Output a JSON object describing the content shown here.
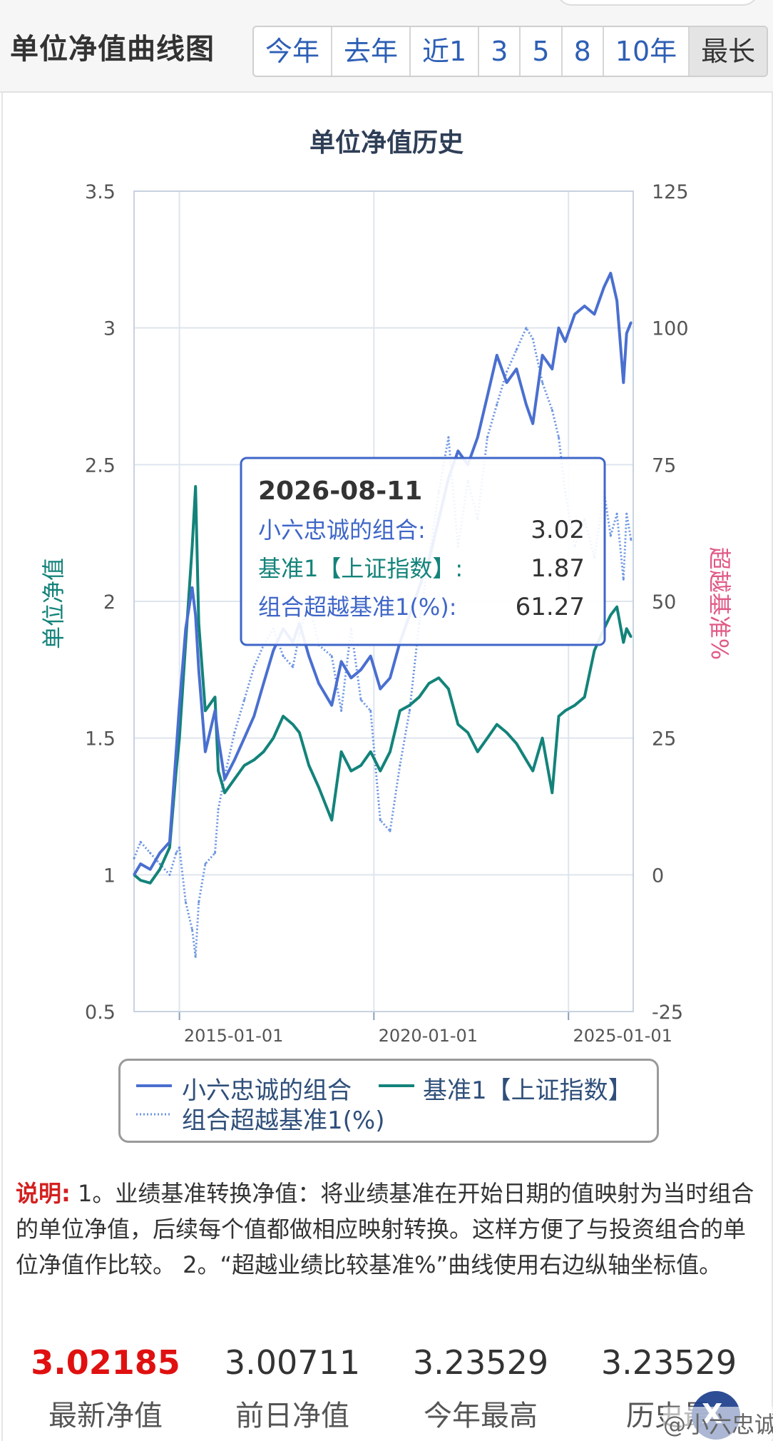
{
  "header": {
    "title": "单位净值曲线图",
    "tabs": [
      {
        "label": "今年",
        "active": false
      },
      {
        "label": "去年",
        "active": false
      },
      {
        "label": "近1",
        "active": false
      },
      {
        "label": "3",
        "active": false
      },
      {
        "label": "5",
        "active": false
      },
      {
        "label": "8",
        "active": false
      },
      {
        "label": "10年",
        "active": false
      },
      {
        "label": "最长",
        "active": true
      }
    ]
  },
  "tooltip": {
    "date": "2026-08-11",
    "rows": [
      {
        "label": "小六忠诚的组合:",
        "value": "3.02",
        "color": "#3f66c8"
      },
      {
        "label": "基准1【上证指数】:",
        "value": "1.87",
        "color": "#13837a"
      },
      {
        "label": "组合超越基准1(%):",
        "value": "61.27",
        "color": "#3f66c8"
      }
    ]
  },
  "legend": {
    "items": [
      {
        "label": "小六忠诚的组合",
        "color": "#4a6fd0",
        "style": "solid"
      },
      {
        "label": "基准1【上证指数】",
        "color": "#13837a",
        "style": "solid"
      },
      {
        "label": "组合超越基准1(%)",
        "color": "#6a94e0",
        "style": "dotted"
      }
    ]
  },
  "chart_data": {
    "type": "line",
    "title": "单位净值历史",
    "ylabel": "单位净值",
    "y2label": "超越基准%",
    "ylim": [
      0.5,
      3.5
    ],
    "y2lim": [
      -25,
      125
    ],
    "yticks": [
      "3.5",
      "3",
      "2.5",
      "2",
      "1.5",
      "1",
      "0.5"
    ],
    "y2ticks": [
      "125",
      "100",
      "75",
      "50",
      "25",
      "0",
      "-25"
    ],
    "xlim": [
      "2013-11-01",
      "2026-09-01"
    ],
    "xticks": [
      "2015-01-01",
      "2020-01-01",
      "2025-01-01"
    ],
    "grid": true,
    "colors": {
      "portfolio": "#4a6fd0",
      "benchmark": "#13837a",
      "excess": "#6a94e0"
    },
    "series": [
      {
        "name": "小六忠诚的组合",
        "axis": "left",
        "points": [
          [
            "2013-11-01",
            1.0
          ],
          [
            "2014-01-01",
            1.04
          ],
          [
            "2014-04-01",
            1.02
          ],
          [
            "2014-07-01",
            1.08
          ],
          [
            "2014-10-01",
            1.12
          ],
          [
            "2014-12-01",
            1.45
          ],
          [
            "2015-01-01",
            1.62
          ],
          [
            "2015-03-01",
            1.9
          ],
          [
            "2015-05-01",
            2.05
          ],
          [
            "2015-06-01",
            1.95
          ],
          [
            "2015-07-01",
            1.75
          ],
          [
            "2015-09-01",
            1.45
          ],
          [
            "2015-12-01",
            1.6
          ],
          [
            "2016-01-01",
            1.5
          ],
          [
            "2016-03-01",
            1.35
          ],
          [
            "2016-06-01",
            1.42
          ],
          [
            "2016-09-01",
            1.5
          ],
          [
            "2016-12-01",
            1.58
          ],
          [
            "2017-03-01",
            1.7
          ],
          [
            "2017-06-01",
            1.82
          ],
          [
            "2017-09-01",
            1.9
          ],
          [
            "2017-12-01",
            1.85
          ],
          [
            "2018-02-01",
            1.92
          ],
          [
            "2018-05-01",
            1.8
          ],
          [
            "2018-08-01",
            1.7
          ],
          [
            "2018-12-01",
            1.62
          ],
          [
            "2019-03-01",
            1.78
          ],
          [
            "2019-06-01",
            1.72
          ],
          [
            "2019-09-01",
            1.75
          ],
          [
            "2019-12-01",
            1.8
          ],
          [
            "2020-03-01",
            1.68
          ],
          [
            "2020-06-01",
            1.72
          ],
          [
            "2020-09-01",
            1.85
          ],
          [
            "2020-12-01",
            1.95
          ],
          [
            "2021-03-01",
            2.05
          ],
          [
            "2021-06-01",
            2.15
          ],
          [
            "2021-09-01",
            2.3
          ],
          [
            "2021-12-01",
            2.45
          ],
          [
            "2022-03-01",
            2.55
          ],
          [
            "2022-06-01",
            2.5
          ],
          [
            "2022-09-01",
            2.6
          ],
          [
            "2022-12-01",
            2.75
          ],
          [
            "2023-03-01",
            2.9
          ],
          [
            "2023-06-01",
            2.8
          ],
          [
            "2023-09-01",
            2.85
          ],
          [
            "2023-12-01",
            2.72
          ],
          [
            "2024-02-01",
            2.65
          ],
          [
            "2024-05-01",
            2.9
          ],
          [
            "2024-08-01",
            2.85
          ],
          [
            "2024-10-01",
            3.0
          ],
          [
            "2024-12-01",
            2.95
          ],
          [
            "2025-03-01",
            3.05
          ],
          [
            "2025-06-01",
            3.08
          ],
          [
            "2025-09-01",
            3.05
          ],
          [
            "2025-12-01",
            3.15
          ],
          [
            "2026-02-01",
            3.2
          ],
          [
            "2026-04-01",
            3.1
          ],
          [
            "2026-06-01",
            2.8
          ],
          [
            "2026-07-01",
            2.98
          ],
          [
            "2026-08-11",
            3.02
          ]
        ]
      },
      {
        "name": "基准1【上证指数】",
        "axis": "left",
        "points": [
          [
            "2013-11-01",
            1.0
          ],
          [
            "2014-01-01",
            0.98
          ],
          [
            "2014-04-01",
            0.97
          ],
          [
            "2014-07-01",
            1.02
          ],
          [
            "2014-10-01",
            1.1
          ],
          [
            "2014-12-01",
            1.38
          ],
          [
            "2015-01-01",
            1.5
          ],
          [
            "2015-03-01",
            1.85
          ],
          [
            "2015-05-01",
            2.2
          ],
          [
            "2015-06-01",
            2.42
          ],
          [
            "2015-07-01",
            1.92
          ],
          [
            "2015-09-01",
            1.6
          ],
          [
            "2015-12-01",
            1.65
          ],
          [
            "2016-01-01",
            1.38
          ],
          [
            "2016-03-01",
            1.3
          ],
          [
            "2016-06-01",
            1.35
          ],
          [
            "2016-09-01",
            1.4
          ],
          [
            "2016-12-01",
            1.42
          ],
          [
            "2017-03-01",
            1.45
          ],
          [
            "2017-06-01",
            1.5
          ],
          [
            "2017-09-01",
            1.58
          ],
          [
            "2017-12-01",
            1.55
          ],
          [
            "2018-02-01",
            1.52
          ],
          [
            "2018-05-01",
            1.4
          ],
          [
            "2018-08-01",
            1.32
          ],
          [
            "2018-12-01",
            1.2
          ],
          [
            "2019-03-01",
            1.45
          ],
          [
            "2019-06-01",
            1.38
          ],
          [
            "2019-09-01",
            1.4
          ],
          [
            "2019-12-01",
            1.45
          ],
          [
            "2020-03-01",
            1.38
          ],
          [
            "2020-06-01",
            1.45
          ],
          [
            "2020-09-01",
            1.6
          ],
          [
            "2020-12-01",
            1.62
          ],
          [
            "2021-03-01",
            1.65
          ],
          [
            "2021-06-01",
            1.7
          ],
          [
            "2021-09-01",
            1.72
          ],
          [
            "2021-12-01",
            1.68
          ],
          [
            "2022-03-01",
            1.55
          ],
          [
            "2022-06-01",
            1.52
          ],
          [
            "2022-09-01",
            1.45
          ],
          [
            "2022-12-01",
            1.5
          ],
          [
            "2023-03-01",
            1.55
          ],
          [
            "2023-06-01",
            1.52
          ],
          [
            "2023-09-01",
            1.48
          ],
          [
            "2023-12-01",
            1.42
          ],
          [
            "2024-02-01",
            1.38
          ],
          [
            "2024-05-01",
            1.5
          ],
          [
            "2024-08-01",
            1.3
          ],
          [
            "2024-10-01",
            1.58
          ],
          [
            "2024-12-01",
            1.6
          ],
          [
            "2025-03-01",
            1.62
          ],
          [
            "2025-06-01",
            1.65
          ],
          [
            "2025-09-01",
            1.82
          ],
          [
            "2025-12-01",
            1.9
          ],
          [
            "2026-02-01",
            1.95
          ],
          [
            "2026-04-01",
            1.98
          ],
          [
            "2026-06-01",
            1.85
          ],
          [
            "2026-07-01",
            1.9
          ],
          [
            "2026-08-11",
            1.87
          ]
        ]
      },
      {
        "name": "组合超越基准1(%)",
        "axis": "right",
        "points": [
          [
            "2013-11-01",
            3
          ],
          [
            "2014-01-01",
            6
          ],
          [
            "2014-04-01",
            4
          ],
          [
            "2014-07-01",
            2
          ],
          [
            "2014-10-01",
            0
          ],
          [
            "2014-12-01",
            4
          ],
          [
            "2015-01-01",
            5
          ],
          [
            "2015-03-01",
            -5
          ],
          [
            "2015-05-01",
            -10
          ],
          [
            "2015-06-01",
            -15
          ],
          [
            "2015-07-01",
            -5
          ],
          [
            "2015-09-01",
            2
          ],
          [
            "2015-12-01",
            4
          ],
          [
            "2016-01-01",
            12
          ],
          [
            "2016-03-01",
            18
          ],
          [
            "2016-06-01",
            26
          ],
          [
            "2016-09-01",
            32
          ],
          [
            "2016-12-01",
            38
          ],
          [
            "2017-03-01",
            42
          ],
          [
            "2017-06-01",
            45
          ],
          [
            "2017-09-01",
            40
          ],
          [
            "2017-12-01",
            38
          ],
          [
            "2018-02-01",
            44
          ],
          [
            "2018-05-01",
            50
          ],
          [
            "2018-08-01",
            42
          ],
          [
            "2018-12-01",
            40
          ],
          [
            "2019-03-01",
            30
          ],
          [
            "2019-06-01",
            45
          ],
          [
            "2019-09-01",
            32
          ],
          [
            "2019-12-01",
            30
          ],
          [
            "2020-03-01",
            10
          ],
          [
            "2020-06-01",
            8
          ],
          [
            "2020-09-01",
            20
          ],
          [
            "2020-12-01",
            30
          ],
          [
            "2021-03-01",
            46
          ],
          [
            "2021-06-01",
            58
          ],
          [
            "2021-09-01",
            70
          ],
          [
            "2021-12-01",
            80
          ],
          [
            "2022-03-01",
            60
          ],
          [
            "2022-06-01",
            72
          ],
          [
            "2022-09-01",
            65
          ],
          [
            "2022-12-01",
            80
          ],
          [
            "2023-03-01",
            86
          ],
          [
            "2023-06-01",
            92
          ],
          [
            "2023-09-01",
            96
          ],
          [
            "2023-12-01",
            100
          ],
          [
            "2024-02-01",
            98
          ],
          [
            "2024-05-01",
            90
          ],
          [
            "2024-08-01",
            85
          ],
          [
            "2024-10-01",
            80
          ],
          [
            "2024-12-01",
            70
          ],
          [
            "2025-03-01",
            60
          ],
          [
            "2025-06-01",
            65
          ],
          [
            "2025-09-01",
            58
          ],
          [
            "2025-12-01",
            70
          ],
          [
            "2026-02-01",
            62
          ],
          [
            "2026-04-01",
            66
          ],
          [
            "2026-06-01",
            54
          ],
          [
            "2026-07-01",
            66
          ],
          [
            "2026-08-11",
            61.27
          ]
        ]
      }
    ]
  },
  "note": {
    "label": "说明:",
    "text": " 1。业绩基准转换净值：将业绩基准在开始日期的值映射为当时组合的单位净值，后续每个值都做相应映射转换。这样方便了与投资组合的单位净值作比较。 2。“超越业绩比较基准%”曲线使用右边纵轴坐标值。"
  },
  "stats": [
    {
      "value": "3.02185",
      "label": "最新净值",
      "highlight": true
    },
    {
      "value": "3.00711",
      "label": "前日净值",
      "highlight": false
    },
    {
      "value": "3.23529",
      "label": "今年最高",
      "highlight": false
    },
    {
      "value": "3.23529",
      "label": "历史最",
      "highlight": false
    }
  ],
  "watermark": {
    "text": "@小六忠诚",
    "badge": "X"
  }
}
